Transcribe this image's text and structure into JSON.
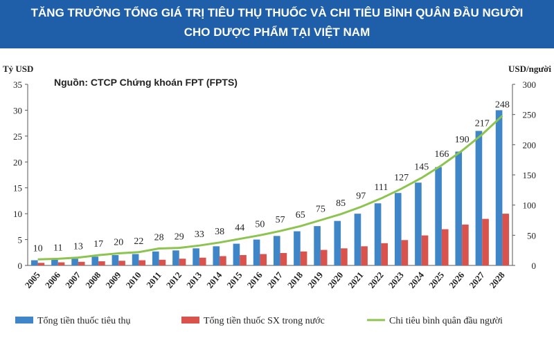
{
  "chart_data": {
    "type": "bar_line",
    "title_lines": [
      "TĂNG TRƯỞNG TỔNG GIÁ TRỊ TIÊU THỤ THUỐC VÀ CHI TIÊU BÌNH QUÂN ĐẦU NGƯỜI",
      "CHO DƯỢC PHẨM TẠI VIỆT NAM"
    ],
    "y_label": "Tỷ USD",
    "y2_label": "USD/người",
    "annotation": "Nguồn: CTCP Chứng khoán FPT (FPTS)",
    "categories": [
      "2005",
      "2006",
      "2007",
      "2008",
      "2009",
      "2010",
      "2011",
      "2012",
      "2013",
      "2014",
      "2015",
      "2016",
      "2017",
      "2018",
      "2019",
      "2020",
      "2021",
      "2022",
      "2023",
      "2024",
      "2025",
      "2026",
      "2027",
      "2028"
    ],
    "series": [
      {
        "name": "Tổng tiền thuốc tiêu thụ",
        "color": "#3f86c8",
        "type": "bar",
        "values": [
          1.0,
          1.1,
          1.3,
          1.7,
          2.0,
          2.2,
          2.7,
          2.9,
          3.3,
          3.7,
          4.2,
          5.0,
          5.7,
          6.6,
          7.6,
          8.6,
          10.0,
          12.0,
          14.0,
          16.0,
          19.0,
          22.0,
          26.0,
          30.0
        ]
      },
      {
        "name": "Tổng tiền thuốc SX trong nước",
        "color": "#d9534c",
        "type": "bar",
        "values": [
          0.5,
          0.6,
          0.7,
          0.8,
          0.9,
          1.0,
          1.1,
          1.3,
          1.5,
          1.8,
          2.0,
          2.2,
          2.4,
          2.7,
          3.0,
          3.3,
          3.7,
          4.3,
          4.9,
          5.8,
          7.0,
          7.9,
          9.0,
          10.0
        ]
      },
      {
        "name": "Chi tiêu bình quân đầu người",
        "color": "#8cc44e",
        "type": "line",
        "axis": "y2",
        "values": [
          10,
          11,
          13,
          17,
          20,
          22,
          28,
          29,
          33,
          38,
          44,
          50,
          57,
          65,
          75,
          85,
          97,
          111,
          127,
          145,
          166,
          190,
          217,
          248
        ]
      }
    ],
    "ylim": [
      0,
      35
    ],
    "yticks": [
      0,
      5,
      10,
      15,
      20,
      25,
      30,
      35
    ],
    "y2lim": [
      0,
      300
    ],
    "y2ticks": [
      0,
      50,
      100,
      150,
      200,
      250,
      300
    ]
  }
}
